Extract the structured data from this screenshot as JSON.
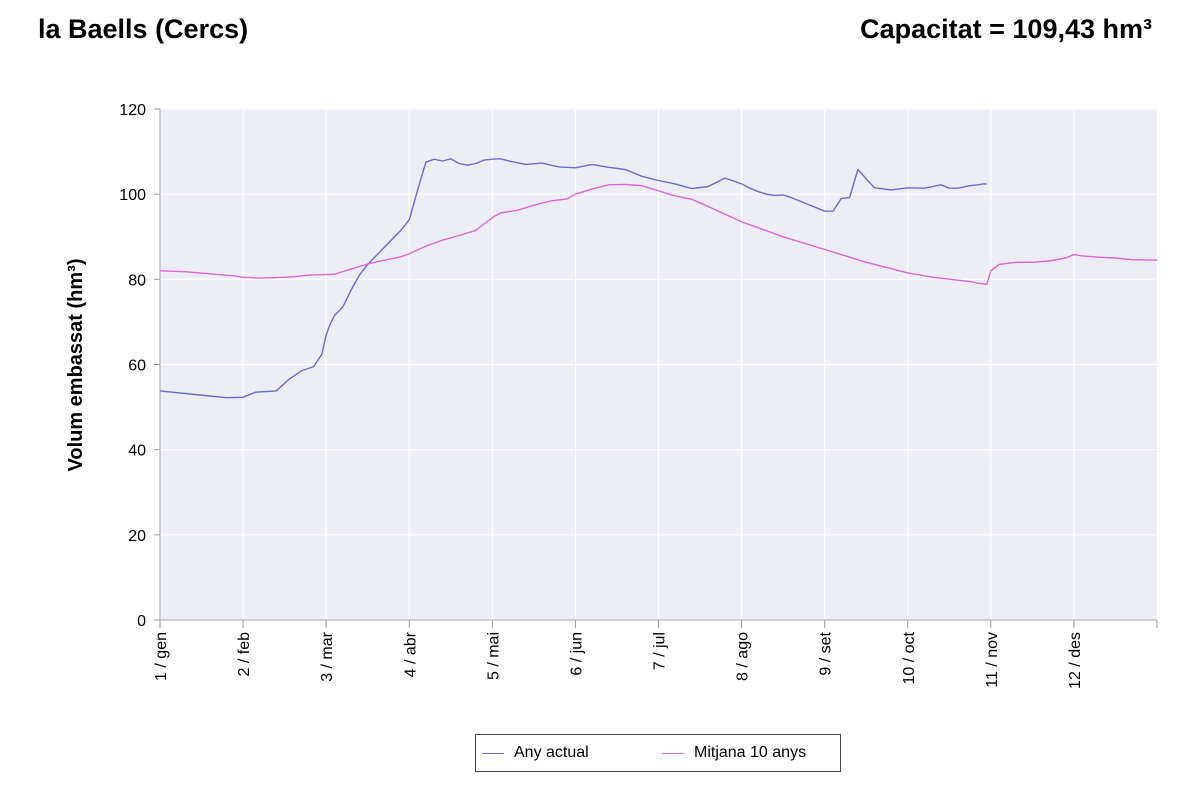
{
  "header": {
    "title": "la Baells (Cercs)",
    "capacity": "Capacitat = 109,43 hm³"
  },
  "chart_data": {
    "type": "line",
    "ylabel": "Volum embassat (hm³)",
    "xlabel": "",
    "ylim": [
      0,
      120
    ],
    "yticks": [
      0,
      20,
      40,
      60,
      80,
      100,
      120
    ],
    "xlim": [
      0,
      12
    ],
    "x_unit": "months from 1 gen",
    "month_ticks": [
      "1 / gen",
      "2 / feb",
      "3 / mar",
      "4 / abr",
      "5 / mai",
      "6 / jun",
      "7 / jul",
      "8 / ago",
      "9 / set",
      "10 / oct",
      "11 / nov",
      "12 / des"
    ],
    "grid": true,
    "legend_position": "bottom",
    "colors": {
      "plot_bg": "#ededf5",
      "grid": "#ffffff",
      "Any actual": "#6b6bd6",
      "Mitjana 10 anys": "#dd66dd"
    },
    "series": [
      {
        "name": "Any actual",
        "x": [
          0,
          0.3,
          0.6,
          0.8,
          1.0,
          1.15,
          1.4,
          1.55,
          1.7,
          1.85,
          1.95,
          2.0,
          2.05,
          2.1,
          2.2,
          2.3,
          2.4,
          2.5,
          2.6,
          2.7,
          2.8,
          2.9,
          3.0,
          3.1,
          3.2,
          3.3,
          3.4,
          3.5,
          3.6,
          3.7,
          3.8,
          3.9,
          4.0,
          4.1,
          4.2,
          4.4,
          4.6,
          4.8,
          5.0,
          5.2,
          5.4,
          5.6,
          5.8,
          6.0,
          6.2,
          6.4,
          6.6,
          6.8,
          7.0,
          7.1,
          7.2,
          7.3,
          7.4,
          7.5,
          7.6,
          7.7,
          7.8,
          7.9,
          8.0,
          8.1,
          8.2,
          8.3,
          8.4,
          8.6,
          8.8,
          9.0,
          9.2,
          9.4,
          9.5,
          9.6,
          9.62,
          9.65,
          9.7,
          9.75,
          9.8,
          9.85,
          9.9,
          9.95
        ],
        "values": [
          53.8,
          53.2,
          52.6,
          52.2,
          52.3,
          53.5,
          53.8,
          56.5,
          58.5,
          59.5,
          62.5,
          67,
          69.5,
          71.5,
          73.5,
          77.5,
          81,
          83.5,
          85.5,
          87.5,
          89.5,
          91.5,
          94,
          101,
          107.5,
          108.2,
          107.8,
          108.3,
          107.2,
          106.8,
          107.2,
          108.0,
          108.2,
          108.3,
          107.8,
          107.0,
          107.3,
          106.4,
          106.2,
          107.0,
          106.3,
          105.8,
          104.2,
          103.2,
          102.4,
          101.3,
          101.8,
          103.8,
          102.4,
          101.4,
          100.6,
          100.0,
          99.7,
          99.8,
          99.2,
          98.4,
          97.6,
          96.8,
          96.0,
          96.0,
          99.0,
          99.2,
          105.8,
          101.5,
          101.0,
          101.5,
          101.4,
          102.2,
          101.4,
          101.4,
          101.5,
          101.6,
          101.8,
          102.0,
          102.1,
          102.2,
          102.4,
          102.4
        ]
      },
      {
        "name": "Mitjana 10 anys",
        "x": [
          0,
          0.3,
          0.6,
          0.9,
          1.0,
          1.2,
          1.4,
          1.6,
          1.8,
          2.0,
          2.1,
          2.3,
          2.5,
          2.7,
          2.9,
          3.0,
          3.2,
          3.4,
          3.6,
          3.8,
          3.9,
          4.0,
          4.1,
          4.3,
          4.5,
          4.7,
          4.9,
          5.0,
          5.2,
          5.4,
          5.6,
          5.8,
          6.0,
          6.2,
          6.4,
          6.6,
          6.8,
          7.0,
          7.5,
          8.0,
          8.5,
          9.0,
          9.3,
          9.6,
          9.75,
          9.85,
          9.95,
          10.0,
          10.1,
          10.3,
          10.5,
          10.7,
          10.9,
          11.0,
          11.1,
          11.3,
          11.5,
          11.7,
          12.0
        ],
        "values": [
          82.0,
          81.8,
          81.3,
          80.8,
          80.5,
          80.3,
          80.4,
          80.6,
          81.0,
          81.1,
          81.2,
          82.4,
          83.6,
          84.5,
          85.3,
          86.0,
          87.8,
          89.2,
          90.3,
          91.5,
          93.0,
          94.5,
          95.6,
          96.2,
          97.4,
          98.4,
          98.9,
          100.0,
          101.2,
          102.2,
          102.3,
          102.0,
          100.8,
          99.6,
          98.8,
          97.1,
          95.3,
          93.5,
          90.0,
          87.0,
          84.0,
          81.5,
          80.5,
          79.8,
          79.5,
          79.1,
          78.8,
          82.0,
          83.5,
          84.0,
          84.0,
          84.3,
          85.0,
          85.8,
          85.5,
          85.2,
          85.0,
          84.6,
          84.5
        ]
      }
    ]
  }
}
